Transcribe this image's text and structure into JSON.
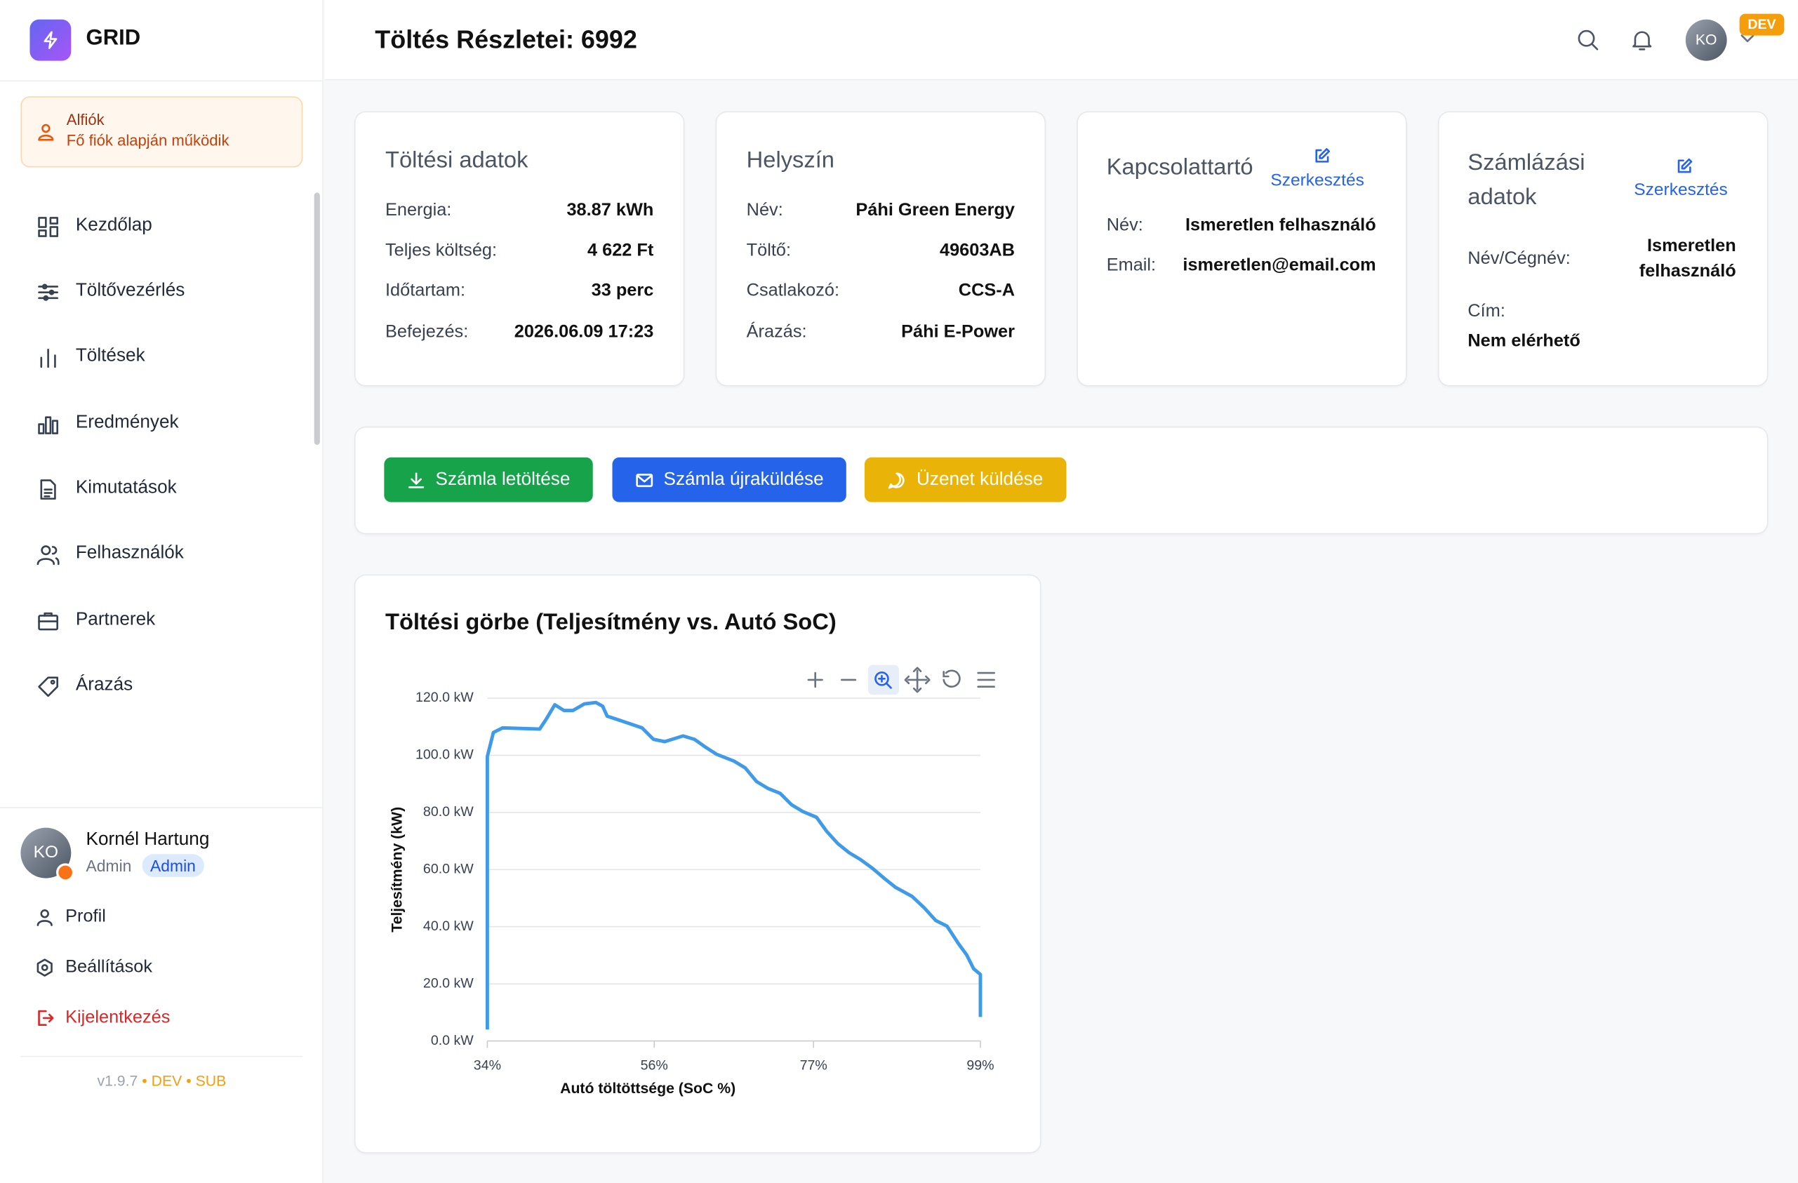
{
  "sidebar": {
    "brand": "GRID",
    "subaccount": {
      "title": "Alfiók",
      "subtitle": "Fő fiók alapján működik"
    },
    "nav": [
      "Kezdőlap",
      "Töltővezérlés",
      "Töltések",
      "Eredmények",
      "Kimutatások",
      "Felhasználók",
      "Partnerek",
      "Árazás"
    ],
    "user": {
      "initials": "KO",
      "name": "Kornél Hartung",
      "role": "Admin",
      "badge": "Admin"
    },
    "menu": [
      "Profil",
      "Beállítások",
      "Kijelentkezés"
    ],
    "footer": {
      "version": "v1.9.7",
      "separator": "•",
      "dev": "DEV",
      "sub": "SUB"
    }
  },
  "header": {
    "title": "Töltés Részletei: 6992",
    "initials": "KO",
    "badge": "DEV"
  },
  "cards": [
    {
      "title": "Töltési adatok",
      "rows": [
        [
          "Energia:",
          "38.87 kWh"
        ],
        [
          "Teljes költség:",
          "4 622 Ft"
        ],
        [
          "Időtartam:",
          "33 perc"
        ],
        [
          "Befejezés:",
          "2026.06.09 17:23"
        ]
      ]
    },
    {
      "title": "Helyszín",
      "rows": [
        [
          "Név:",
          "Páhi Green Energy"
        ],
        [
          "Töltő:",
          "49603AB"
        ],
        [
          "Csatlakozó:",
          "CCS-A"
        ],
        [
          "Árazás:",
          "Páhi E-Power"
        ]
      ]
    },
    {
      "title": "Kapcsolattartó",
      "edit": "Szerkesztés",
      "rows": [
        [
          "Név:",
          "Ismeretlen felhasználó"
        ],
        [
          "Email:",
          "ismeretlen@email.com"
        ]
      ]
    },
    {
      "title": "Számlázási adatok",
      "edit": "Szerkesztés",
      "rows": [
        [
          "Név/Cégnév:",
          "Ismeretlen felhasználó"
        ],
        [
          "Cím:",
          "Nem elérhető"
        ]
      ]
    }
  ],
  "actions": [
    "Számla letöltése",
    "Számla újraküldése",
    "Üzenet küldése"
  ],
  "chart_data": {
    "type": "line",
    "title": "Töltési görbe (Teljesítmény vs. Autó SoC)",
    "x_label": "Autó töltöttsége (SoC %)",
    "y_label": "Teljesítmény (kW)",
    "x": [
      34,
      34,
      34.8,
      36,
      40.9,
      41.7,
      42.9,
      44.1,
      45.3,
      46.8,
      48.3,
      49.2,
      49.8,
      51.3,
      54.4,
      55.9,
      57.4,
      59.8,
      61.3,
      62.8,
      64.2,
      66.5,
      68,
      69.5,
      71,
      72.6,
      74.1,
      75.6,
      77.4,
      78.7,
      80.2,
      81.7,
      83.2,
      84.7,
      86.3,
      87.8,
      90,
      91.6,
      93.1,
      94.6,
      96.1,
      97.2,
      98.1,
      99,
      99
    ],
    "series": [
      {
        "name": "Teljesítmény",
        "color": "#3f9be9",
        "values": [
          4,
          99.6,
          108,
          109.6,
          109.2,
          112.4,
          117.7,
          115.7,
          115.7,
          118,
          118.5,
          117.2,
          113.7,
          112.4,
          109.6,
          105.6,
          104.8,
          106.8,
          105.6,
          102.8,
          100.4,
          98,
          95.6,
          90.8,
          88.4,
          86.7,
          82.7,
          80.3,
          78.3,
          73.5,
          69.1,
          65.9,
          63.5,
          60.6,
          57,
          53.8,
          50.6,
          46.6,
          42.2,
          40.2,
          34.1,
          30.1,
          25.3,
          23.3,
          8.4
        ]
      }
    ],
    "xlim": [
      34,
      99
    ],
    "ylim": [
      0,
      120
    ],
    "xticks": [
      {
        "value": 34,
        "label": "34%"
      },
      {
        "value": 56,
        "label": "56%"
      },
      {
        "value": 77,
        "label": "77%"
      },
      {
        "value": 99,
        "label": "99%"
      }
    ],
    "yticks": [
      {
        "value": 0,
        "label": "0.0 kW"
      },
      {
        "value": 20,
        "label": "20.0 kW"
      },
      {
        "value": 40,
        "label": "40.0 kW"
      },
      {
        "value": 60,
        "label": "60.0 kW"
      },
      {
        "value": 80,
        "label": "80.0 kW"
      },
      {
        "value": 100,
        "label": "100.0 kW"
      },
      {
        "value": 120,
        "label": "120.0 kW"
      }
    ],
    "grid": true
  }
}
